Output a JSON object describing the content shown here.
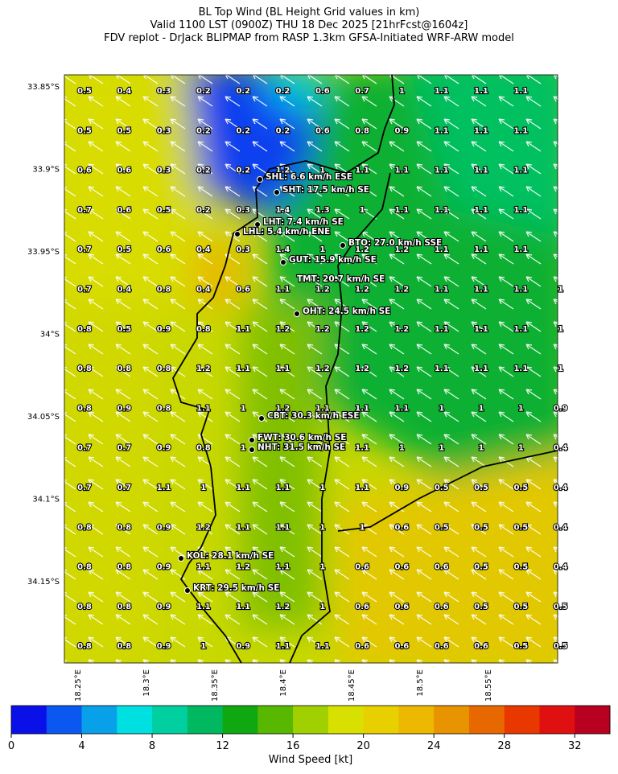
{
  "title": [
    "BL Top Wind (BL Height Grid values in km)",
    "Valid 1100 LST (0900Z) THU 18 Dec 2025 [21hrFcst@1604z]",
    "FDV replot - DrJack BLIPMAP from RASP 1.3km GFSA-Initiated WRF-ARW model"
  ],
  "map": {
    "lat_ticks": [
      "33.85°S",
      "33.9°S",
      "33.95°S",
      "34°S",
      "34.05°S",
      "34.1°S",
      "34.15°S"
    ],
    "lon_ticks": [
      "18.25°E",
      "18.3°E",
      "18.35°E",
      "18.4°E",
      "18.45°E",
      "18.5°E",
      "18.55°E"
    ],
    "grid_values": [
      [
        0.5,
        0.4,
        0.3,
        0.2,
        0.2,
        0.2,
        0.6,
        0.7,
        1.0,
        1.1,
        1.1,
        1.1,
        null
      ],
      [
        0.5,
        0.5,
        0.3,
        0.2,
        0.2,
        0.2,
        0.6,
        0.8,
        0.9,
        1.1,
        1.1,
        1.1,
        null
      ],
      [
        0.6,
        0.6,
        0.3,
        0.2,
        0.2,
        1.2,
        1.0,
        1.1,
        1.1,
        1.1,
        1.1,
        1.1,
        null
      ],
      [
        0.7,
        0.6,
        0.5,
        0.2,
        0.3,
        1.4,
        1.3,
        1.0,
        1.1,
        1.1,
        1.1,
        1.1,
        null
      ],
      [
        0.7,
        0.5,
        0.6,
        0.4,
        0.3,
        1.4,
        1.0,
        1.2,
        1.2,
        1.1,
        1.1,
        1.1,
        null
      ],
      [
        0.7,
        0.4,
        0.8,
        0.4,
        0.6,
        1.1,
        1.2,
        1.2,
        1.2,
        1.1,
        1.1,
        1.1,
        1.0
      ],
      [
        0.8,
        0.5,
        0.9,
        0.8,
        1.1,
        1.2,
        1.2,
        1.2,
        1.2,
        1.1,
        1.1,
        1.1,
        1.0
      ],
      [
        0.8,
        0.8,
        0.8,
        1.2,
        1.1,
        1.1,
        1.2,
        1.2,
        1.2,
        1.1,
        1.1,
        1.1,
        1.0
      ],
      [
        0.8,
        0.9,
        0.8,
        1.1,
        1.0,
        1.2,
        1.1,
        1.1,
        1.1,
        1.0,
        1.0,
        1.0,
        0.9
      ],
      [
        0.7,
        0.7,
        0.9,
        0.8,
        1.0,
        null,
        null,
        1.1,
        1.0,
        1.0,
        1.0,
        1.0,
        0.4
      ],
      [
        0.7,
        0.7,
        1.1,
        1.0,
        1.1,
        1.1,
        1.0,
        1.1,
        0.9,
        0.5,
        0.5,
        0.5,
        0.4
      ],
      [
        0.8,
        0.8,
        0.9,
        1.2,
        1.1,
        1.1,
        1.0,
        1.0,
        0.6,
        0.5,
        0.5,
        0.5,
        0.4
      ],
      [
        0.8,
        0.8,
        0.9,
        1.1,
        1.2,
        1.1,
        1.0,
        0.6,
        0.6,
        0.6,
        0.5,
        0.5,
        0.4
      ],
      [
        0.8,
        0.8,
        0.9,
        1.1,
        1.1,
        1.2,
        1.0,
        0.6,
        0.6,
        0.6,
        0.5,
        0.5,
        0.5
      ],
      [
        0.8,
        0.8,
        0.9,
        1.0,
        0.9,
        1.1,
        1.1,
        0.6,
        0.6,
        0.6,
        0.6,
        0.5,
        0.5
      ]
    ],
    "stations": [
      "SHL: 6.6 km/h ESE",
      "SHT: 17.5 km/h SE",
      "LHT: 7.4 km/h SE",
      "LHL: 5.4 km/h ENE",
      "BTO: 27.0 km/h SSE",
      "GUT: 15.9 km/h SE",
      "TMT: 20.7 km/h SE",
      "OHT: 24.5 km/h SE",
      "CBT: 30.3 km/h ESE",
      "FWT: 30.6 km/h SE",
      "NHT: 31.5 km/h SE",
      "KOL: 28.1 km/h SE",
      "KRT: 29.5 km/h SE"
    ]
  },
  "colorbar": {
    "label": "Wind Speed [kt]",
    "lim": [
      0,
      34
    ],
    "ticks": [
      0,
      4,
      8,
      12,
      16,
      20,
      24,
      28,
      32
    ],
    "colors": [
      "#0a10e8",
      "#0a58f0",
      "#08a0e8",
      "#00e0e0",
      "#00d0a0",
      "#00b860",
      "#10a810",
      "#58b800",
      "#a0d000",
      "#d8e000",
      "#e8d000",
      "#ecb800",
      "#e89400",
      "#e86800",
      "#e83800",
      "#e01010",
      "#b80020"
    ]
  }
}
